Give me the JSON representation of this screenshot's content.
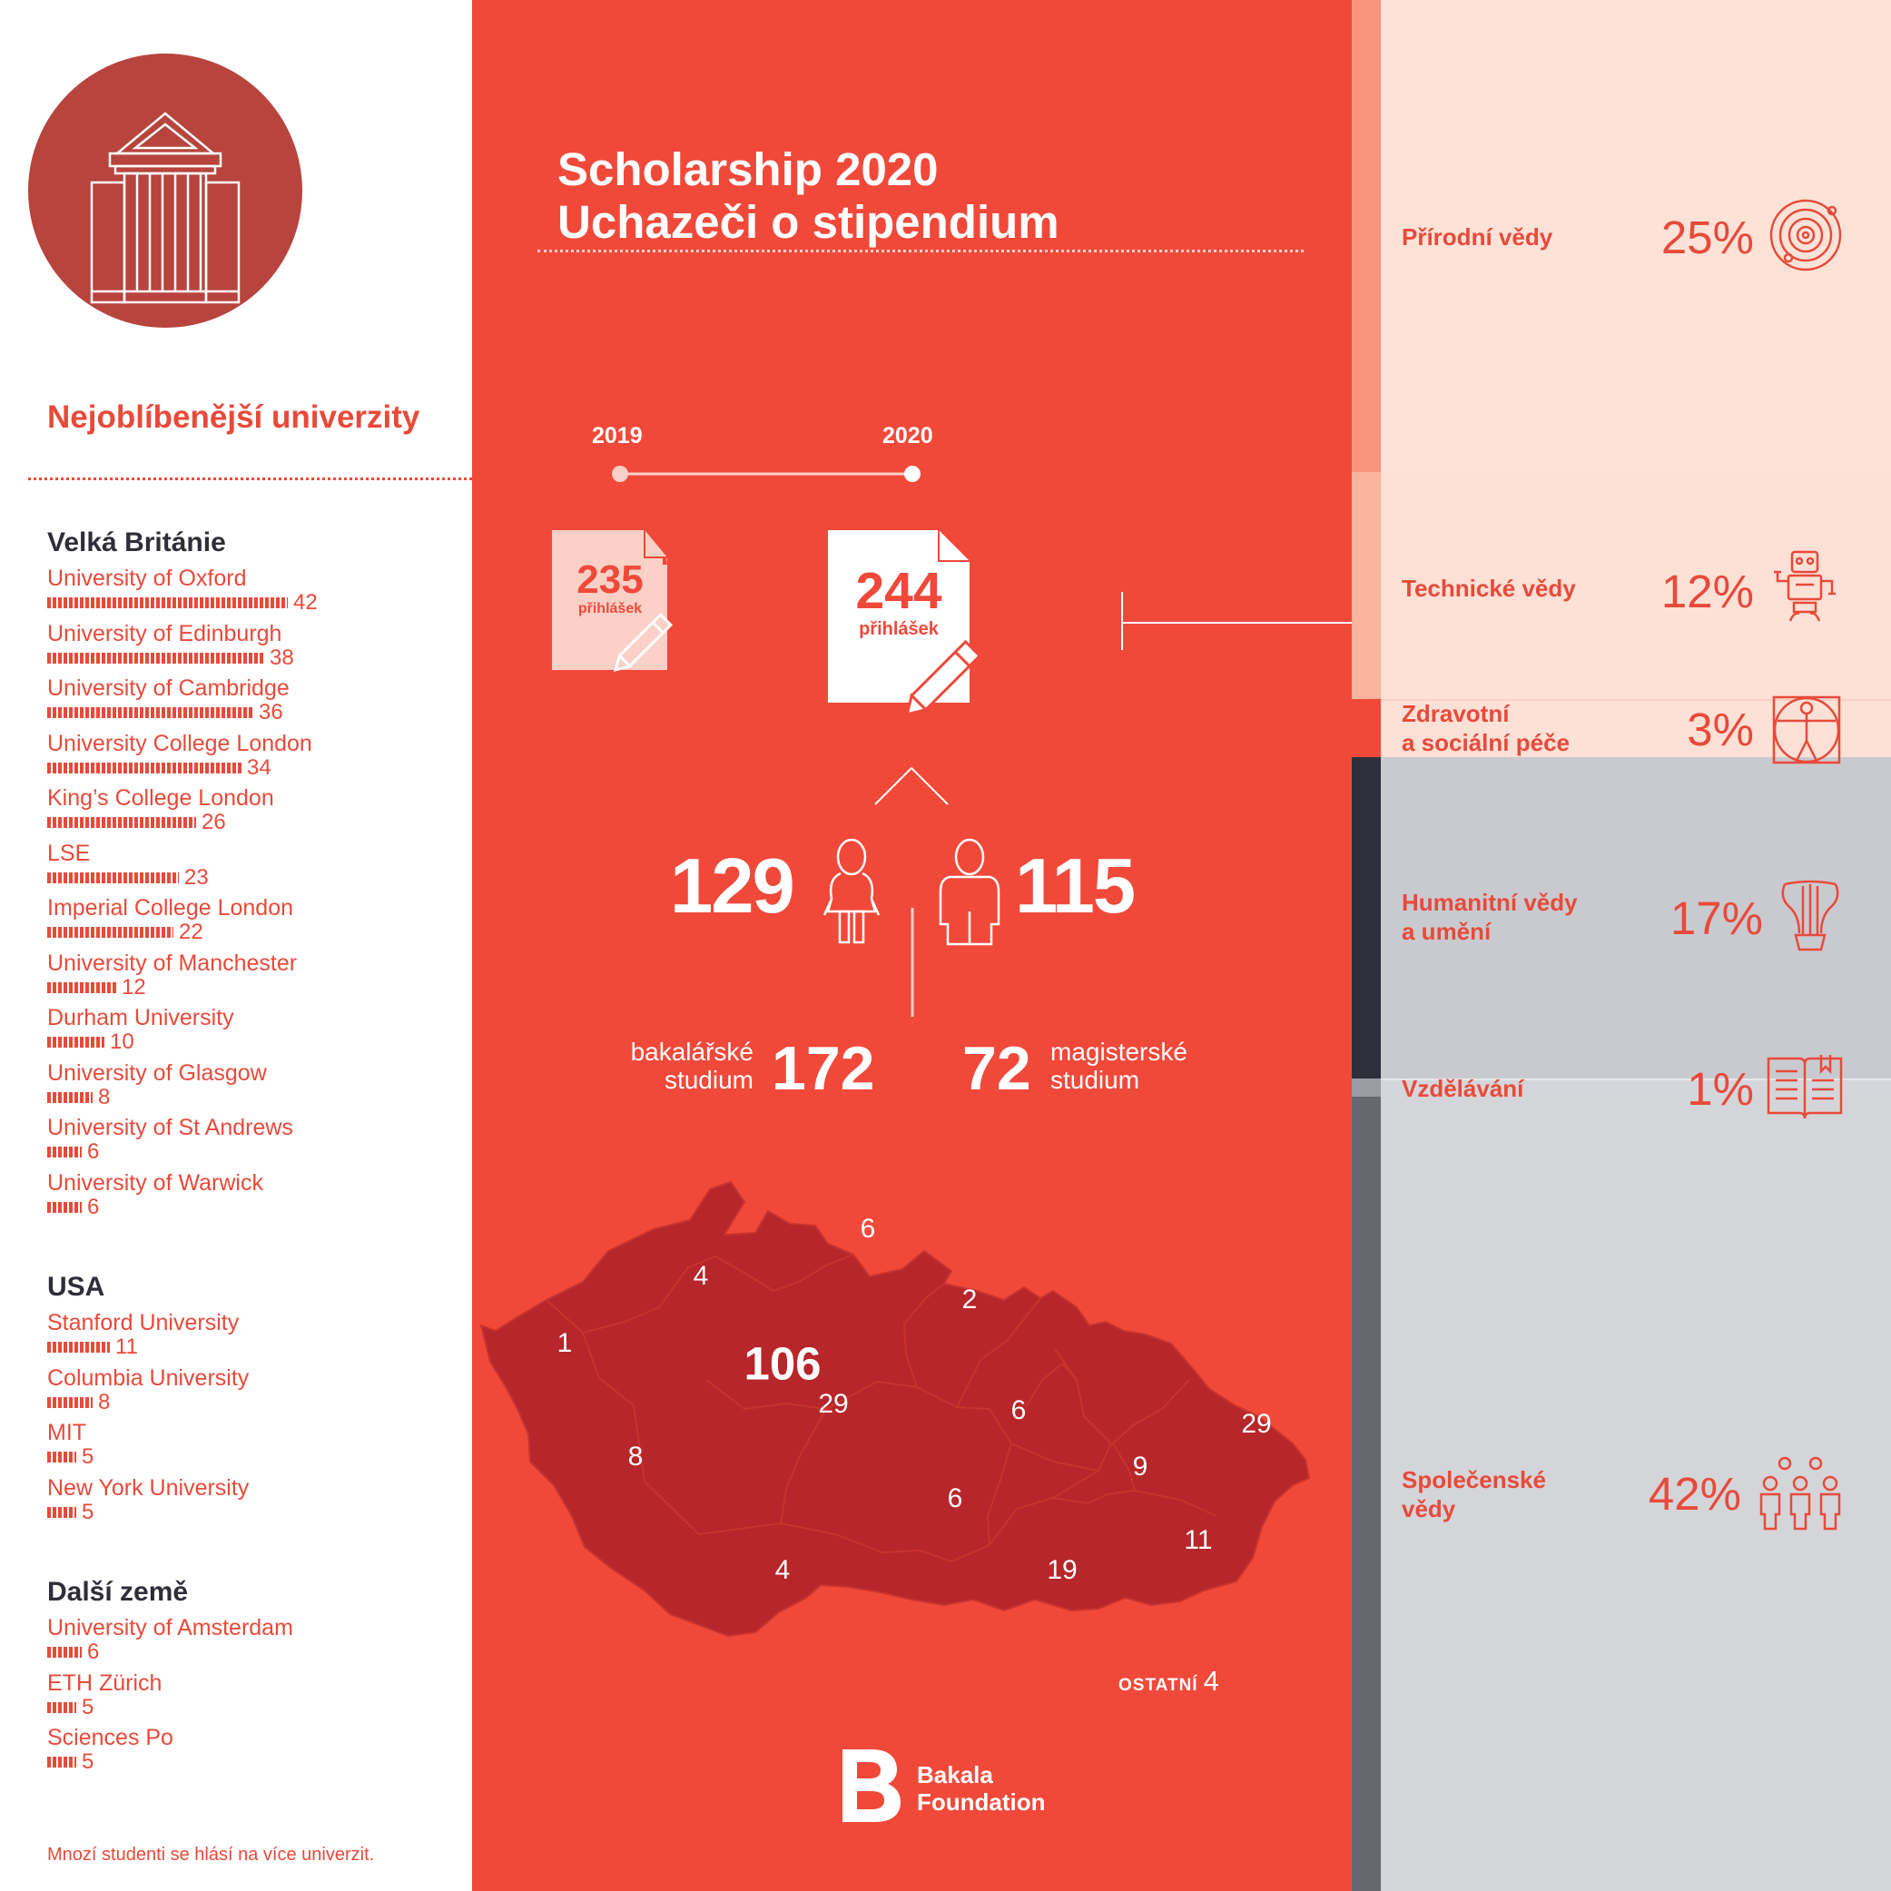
{
  "title": {
    "line1": "Scholarship 2020",
    "line2": "Uchazeči o stipendium"
  },
  "universities": {
    "heading": "Nejoblíbenější univerzity",
    "groups": [
      {
        "title": "Velká Británie",
        "items": [
          {
            "name": "University of Oxford",
            "count": 42
          },
          {
            "name": "University of Edinburgh",
            "count": 38
          },
          {
            "name": "University of Cambridge",
            "count": 36
          },
          {
            "name": "University College London",
            "count": 34
          },
          {
            "name": "King’s College London",
            "count": 26
          },
          {
            "name": "LSE",
            "count": 23
          },
          {
            "name": "Imperial College London",
            "count": 22
          },
          {
            "name": "University of Manchester",
            "count": 12
          },
          {
            "name": "Durham University",
            "count": 10
          },
          {
            "name": "University of Glasgow",
            "count": 8
          },
          {
            "name": "University of St Andrews",
            "count": 6
          },
          {
            "name": "University of Warwick",
            "count": 6
          }
        ]
      },
      {
        "title": "USA",
        "items": [
          {
            "name": "Stanford University",
            "count": 11
          },
          {
            "name": "Columbia University",
            "count": 8
          },
          {
            "name": "MIT",
            "count": 5
          },
          {
            "name": "New York University",
            "count": 5
          }
        ]
      },
      {
        "title": "Další země",
        "items": [
          {
            "name": "University of Amsterdam",
            "count": 6
          },
          {
            "name": "ETH Zürich",
            "count": 5
          },
          {
            "name": "Sciences Po",
            "count": 5
          }
        ]
      }
    ],
    "footnote": "Mnozí studenti se hlásí na více univerzit."
  },
  "applications": {
    "year_prev": "2019",
    "year_curr": "2020",
    "prev_count": "235",
    "curr_count": "244",
    "unit": "přihlášek"
  },
  "gender": {
    "female": "129",
    "male": "115"
  },
  "study": {
    "bachelor_label_1": "bakalářské",
    "bachelor_label_2": "studium",
    "bachelor_value": "172",
    "master_label_1": "magisterské",
    "master_label_2": "studium",
    "master_value": "72"
  },
  "regions": {
    "karlovarsky": "1",
    "ustecky": "4",
    "liberecky": "6",
    "kralovehradecky": "2",
    "stredocesky": "29",
    "praha": "106",
    "plzensky": "8",
    "pardubicky": "6",
    "olomoucky": "9",
    "moravskoslezsky": "29",
    "vysocina": "6",
    "jihocesky": "4",
    "jihomoravsky": "19",
    "zlinsky": "11",
    "other_label": "OSTATNÍ",
    "other_value": "4"
  },
  "brand": {
    "name_line1": "Bakala",
    "name_line2": "Foundation"
  },
  "fields": [
    {
      "label1": "Přírodní vědy",
      "label2": "",
      "percent": "25%",
      "icon": "planet-orbit-icon"
    },
    {
      "label1": "Technické vědy",
      "label2": "",
      "percent": "12%",
      "icon": "robot-icon"
    },
    {
      "label1": "Zdravotní",
      "label2": "a sociální péče",
      "percent": "3%",
      "icon": "vitruvian-man-icon"
    },
    {
      "label1": "Humanitní vědy",
      "label2": "a umění",
      "percent": "17%",
      "icon": "lyre-icon"
    },
    {
      "label1": "Vzdělávání",
      "label2": "",
      "percent": "1%",
      "icon": "open-book-icon"
    },
    {
      "label1": "Společenské",
      "label2": "vědy",
      "percent": "42%",
      "icon": "people-group-icon"
    }
  ],
  "colors": {
    "accent": "#f0493a",
    "dark_red": "#b7443d",
    "map_fill": "#b7262a",
    "peach": "#fde2d8",
    "grey_band": "#cccdd2",
    "dark_stripe": "#2f2f3b"
  }
}
